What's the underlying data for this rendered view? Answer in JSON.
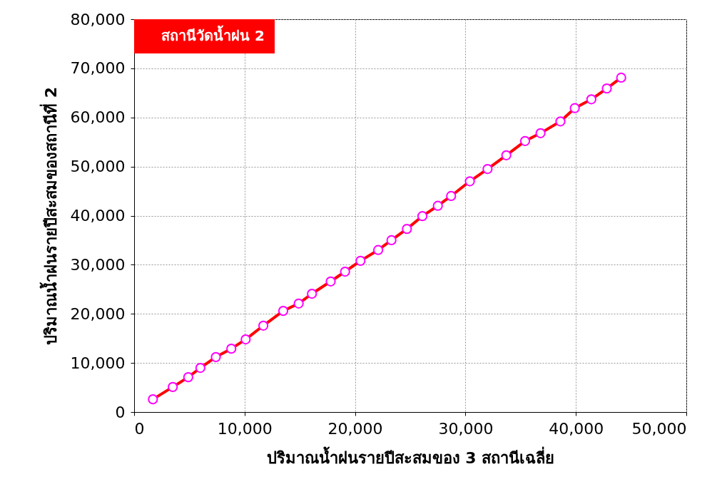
{
  "chart_data": {
    "type": "line",
    "xlabel": "ปริมาณน้ำฝนรายปีสะสมของ 3 สถานีเฉลี่ย",
    "ylabel": "ปริมาณน้ำฝนรายปีสะสมของสถานีที่ 2",
    "x": [
      1700,
      3500,
      4900,
      6000,
      7400,
      8800,
      10100,
      11700,
      13500,
      14900,
      16100,
      17800,
      19100,
      20500,
      22100,
      23300,
      24700,
      26100,
      27500,
      28700,
      30400,
      32000,
      33700,
      35400,
      36800,
      38600,
      39900,
      41400,
      42800,
      44100
    ],
    "series": [
      {
        "name": "สถานีวัดน้ำฝน 2",
        "color": "#ff0000",
        "values": [
          2600,
          5100,
          7100,
          9000,
          11200,
          12900,
          14800,
          17600,
          20600,
          22100,
          24100,
          26600,
          28600,
          30800,
          33000,
          35000,
          37300,
          39900,
          42000,
          44000,
          47000,
          49500,
          52300,
          55200,
          56800,
          59200,
          61900,
          63700,
          65900,
          68100
        ]
      }
    ],
    "xlim": [
      0,
      50000
    ],
    "ylim": [
      0,
      80000
    ],
    "xticks": [
      {
        "value": 0,
        "label": "0"
      },
      {
        "value": 10000,
        "label": "10,000"
      },
      {
        "value": 20000,
        "label": "20,000"
      },
      {
        "value": 30000,
        "label": "30,000"
      },
      {
        "value": 40000,
        "label": "40,000"
      },
      {
        "value": 50000,
        "label": "50,000"
      }
    ],
    "yticks": [
      {
        "value": 0,
        "label": "0"
      },
      {
        "value": 10000,
        "label": "10,000"
      },
      {
        "value": 20000,
        "label": "20,000"
      },
      {
        "value": 30000,
        "label": "30,000"
      },
      {
        "value": 40000,
        "label": "40,000"
      },
      {
        "value": 50000,
        "label": "50,000"
      },
      {
        "value": 60000,
        "label": "60,000"
      },
      {
        "value": 70000,
        "label": "70,000"
      },
      {
        "value": 80000,
        "label": "80,000"
      }
    ],
    "grid": true,
    "legend": "top left",
    "marker": "circle",
    "line_style": "solid"
  }
}
